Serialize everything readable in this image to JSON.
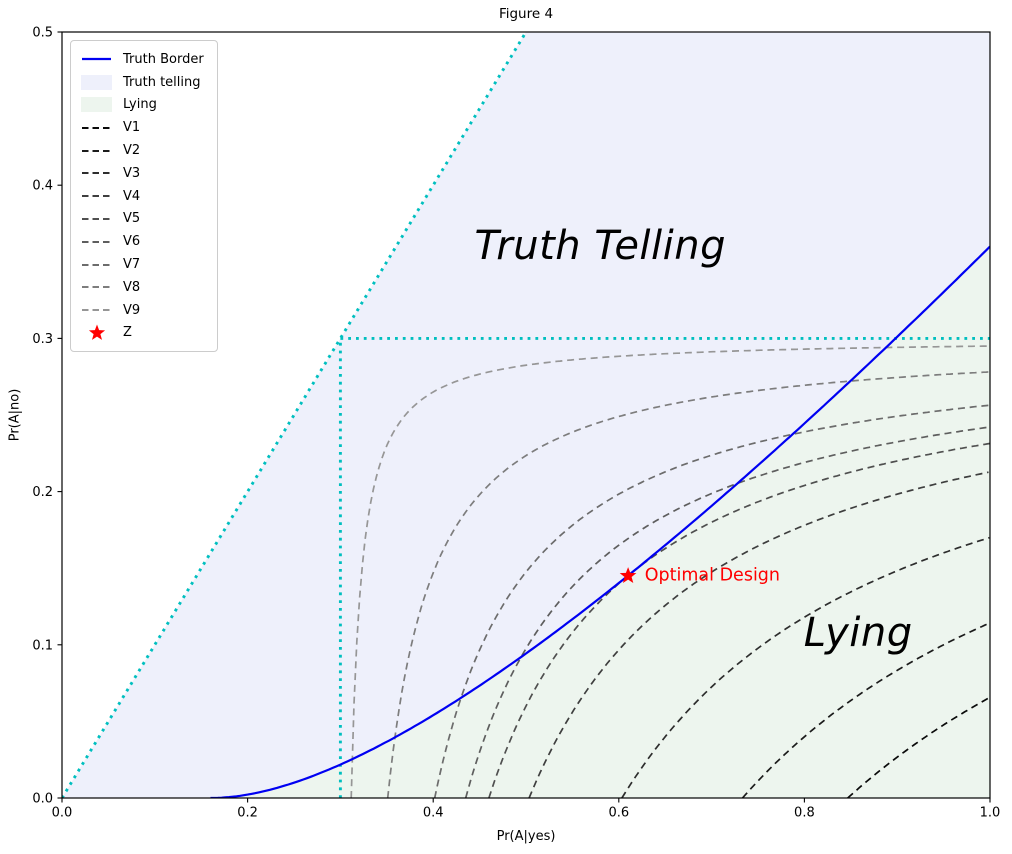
{
  "chart_data": {
    "type": "line",
    "title": "Figure 4",
    "xlabel": "Pr(A|yes)",
    "ylabel": "Pr(A|no)",
    "xlim": [
      0,
      1.0
    ],
    "ylim": [
      0,
      0.5
    ],
    "xticks": [
      "0.0",
      "0.2",
      "0.4",
      "0.6",
      "0.8",
      "1.0"
    ],
    "yticks": [
      "0.0",
      "0.1",
      "0.2",
      "0.3",
      "0.4",
      "0.5"
    ],
    "grid": false,
    "regions": {
      "truth_telling": {
        "label": "Truth telling",
        "color": "#eef0fb"
      },
      "lying": {
        "label": "Lying",
        "color": "#edf5ee"
      }
    },
    "truth_border": {
      "label": "Truth Border",
      "color": "#0000f2",
      "formula": "y = (sqrt(x) - 0.4)^2",
      "sqrt_offset": 0.4,
      "x_start": 0.16,
      "points": [
        [
          0.16,
          0
        ],
        [
          0.2,
          0.002
        ],
        [
          0.3,
          0.022
        ],
        [
          0.4,
          0.054
        ],
        [
          0.5,
          0.094
        ],
        [
          0.61,
          0.145
        ],
        [
          0.7,
          0.191
        ],
        [
          0.8,
          0.244
        ],
        [
          0.9,
          0.301
        ],
        [
          1.0,
          0.36
        ]
      ]
    },
    "v_curves": [
      {
        "name": "V1",
        "color": "#0a0a0a",
        "c": 0.164,
        "asymptote": 0.3,
        "x_intercept": 0.847,
        "y_at_x1": 0.066
      },
      {
        "name": "V2",
        "color": "#1b1b1b",
        "c": 0.13,
        "asymptote": 0.3,
        "x_intercept": 0.733,
        "y_at_x1": 0.114
      },
      {
        "name": "V3",
        "color": "#2d2d2d",
        "c": 0.091,
        "asymptote": 0.3,
        "x_intercept": 0.603,
        "y_at_x1": 0.17
      },
      {
        "name": "V4",
        "color": "#3e3e3e",
        "c": 0.061,
        "asymptote": 0.3,
        "x_intercept": 0.503,
        "y_at_x1": 0.213
      },
      {
        "name": "V5",
        "color": "#4f4f4f",
        "c": 0.048,
        "asymptote": 0.3,
        "x_intercept": 0.46,
        "y_at_x1": 0.231
      },
      {
        "name": "V6",
        "color": "#5e5e5e",
        "c": 0.0405,
        "asymptote": 0.3,
        "x_intercept": 0.435,
        "y_at_x1": 0.242
      },
      {
        "name": "V7",
        "color": "#6c6c6c",
        "c": 0.0305,
        "asymptote": 0.3,
        "x_intercept": 0.402,
        "y_at_x1": 0.256
      },
      {
        "name": "V8",
        "color": "#7d7d7d",
        "c": 0.0153,
        "asymptote": 0.3,
        "x_intercept": 0.351,
        "y_at_x1": 0.278
      },
      {
        "name": "V9",
        "color": "#969696",
        "c": 0.0035,
        "asymptote": 0.3,
        "x_intercept": 0.312,
        "y_at_x1": 0.295
      }
    ],
    "guides": {
      "color": "#00bfbf",
      "style": "dotted",
      "lines": [
        {
          "name": "diagonal",
          "from": [
            0,
            0
          ],
          "to": [
            0.5,
            0.5
          ]
        },
        {
          "name": "horizontal-0.3",
          "from": [
            0.3,
            0.3
          ],
          "to": [
            1.0,
            0.3
          ]
        },
        {
          "name": "vertical-0.3",
          "from": [
            0.3,
            0.0
          ],
          "to": [
            0.3,
            0.3
          ]
        }
      ]
    },
    "z_point": {
      "label": "Z",
      "x": 0.61,
      "y": 0.145,
      "marker": "star",
      "color": "#ff0000"
    },
    "annotations": {
      "truth_telling": {
        "text": "Truth Telling",
        "x": 0.58,
        "y": 0.36
      },
      "lying": {
        "text": "Lying",
        "x": 0.858,
        "y": 0.108
      },
      "optimal": {
        "text": "Optimal Design",
        "x": 0.628,
        "y": 0.145,
        "color": "#ff0000"
      }
    },
    "legend": {
      "position": "upper left",
      "items": [
        {
          "glyph": "line",
          "color": "#0000f2",
          "label": "Truth Border"
        },
        {
          "glyph": "patch",
          "color": "#eef0fb",
          "label": "Truth telling"
        },
        {
          "glyph": "patch",
          "color": "#edf5ee",
          "label": "Lying"
        },
        {
          "glyph": "dash",
          "color": "#0a0a0a",
          "label": "V1"
        },
        {
          "glyph": "dash",
          "color": "#1b1b1b",
          "label": "V2"
        },
        {
          "glyph": "dash",
          "color": "#2d2d2d",
          "label": "V3"
        },
        {
          "glyph": "dash",
          "color": "#3e3e3e",
          "label": "V4"
        },
        {
          "glyph": "dash",
          "color": "#4f4f4f",
          "label": "V5"
        },
        {
          "glyph": "dash",
          "color": "#5e5e5e",
          "label": "V6"
        },
        {
          "glyph": "dash",
          "color": "#6c6c6c",
          "label": "V7"
        },
        {
          "glyph": "dash",
          "color": "#7d7d7d",
          "label": "V8"
        },
        {
          "glyph": "dash",
          "color": "#969696",
          "label": "V9"
        },
        {
          "glyph": "star",
          "color": "#ff0000",
          "label": "Z"
        }
      ]
    }
  }
}
